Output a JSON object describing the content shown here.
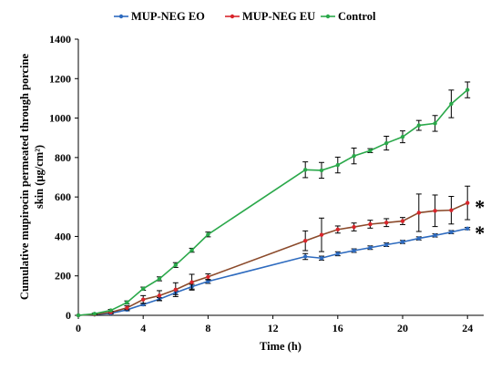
{
  "chart_data": {
    "type": "line",
    "title": "",
    "xlabel": "Time (h)",
    "ylabel_line1": "Cumulative mupirocin permeated through porcine",
    "ylabel_line2": "skin (μg/cm²)",
    "xlim": [
      0,
      25
    ],
    "ylim": [
      0,
      1400
    ],
    "x_ticks": [
      0,
      4,
      8,
      12,
      16,
      20,
      24
    ],
    "y_ticks": [
      0,
      200,
      400,
      600,
      800,
      1000,
      1200,
      1400
    ],
    "grid": false,
    "legend_position": "top",
    "significance_marks": [
      {
        "series": "MUP-NEG EU",
        "text": "*"
      },
      {
        "series": "MUP-NEG EO",
        "text": "*"
      }
    ],
    "series": [
      {
        "name": "MUP-NEG EO",
        "color": "#2e6bbf",
        "x": [
          0,
          1,
          2,
          3,
          4,
          5,
          6,
          7,
          8,
          14,
          15,
          16,
          17,
          18,
          19,
          20,
          21,
          22,
          23,
          24
        ],
        "values": [
          0,
          4,
          10,
          28,
          55,
          82,
          115,
          145,
          172,
          298,
          290,
          312,
          328,
          343,
          358,
          372,
          390,
          405,
          422,
          440
        ],
        "errors": [
          0,
          2,
          3,
          5,
          6,
          8,
          10,
          12,
          10,
          15,
          10,
          10,
          9,
          9,
          9,
          8,
          8,
          8,
          8,
          6
        ]
      },
      {
        "name": "MUP-NEG EU",
        "color": "#d9252b",
        "line_color": "#8b4a2b",
        "x": [
          0,
          1,
          2,
          3,
          4,
          5,
          6,
          7,
          8,
          14,
          15,
          16,
          17,
          18,
          19,
          20,
          21,
          22,
          23,
          24
        ],
        "values": [
          0,
          5,
          15,
          38,
          80,
          100,
          130,
          168,
          195,
          378,
          408,
          435,
          448,
          462,
          470,
          478,
          520,
          530,
          533,
          570
        ],
        "errors": [
          0,
          3,
          5,
          10,
          20,
          25,
          35,
          40,
          15,
          50,
          85,
          18,
          20,
          20,
          20,
          18,
          95,
          80,
          70,
          85
        ]
      },
      {
        "name": "Control",
        "color": "#2aa84a",
        "x": [
          0,
          1,
          2,
          3,
          4,
          5,
          6,
          7,
          8,
          14,
          15,
          16,
          17,
          18,
          19,
          20,
          21,
          22,
          23,
          24
        ],
        "values": [
          0,
          8,
          25,
          65,
          135,
          185,
          255,
          330,
          410,
          738,
          735,
          762,
          808,
          835,
          873,
          905,
          963,
          973,
          1072,
          1143
        ],
        "errors": [
          0,
          3,
          5,
          8,
          8,
          10,
          12,
          10,
          12,
          40,
          40,
          40,
          40,
          10,
          35,
          30,
          25,
          40,
          70,
          40
        ]
      }
    ]
  }
}
